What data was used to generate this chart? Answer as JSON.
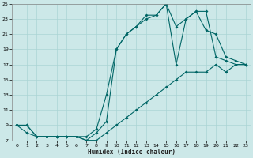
{
  "xlabel": "Humidex (Indice chaleur)",
  "bg_color": "#cce8e8",
  "grid_color": "#aad4d4",
  "line_color": "#006666",
  "xlim": [
    -0.5,
    23.5
  ],
  "ylim": [
    7,
    25
  ],
  "xticks": [
    0,
    1,
    2,
    3,
    4,
    5,
    6,
    7,
    8,
    9,
    10,
    11,
    12,
    13,
    14,
    15,
    16,
    17,
    18,
    19,
    20,
    21,
    22,
    23
  ],
  "yticks": [
    7,
    9,
    11,
    13,
    15,
    17,
    19,
    21,
    23,
    25
  ],
  "line1_x": [
    0,
    1,
    2,
    3,
    4,
    5,
    6,
    7,
    8,
    9,
    10,
    11,
    12,
    13,
    14,
    15,
    16,
    17,
    18,
    19,
    20,
    21,
    22,
    23
  ],
  "line1_y": [
    9,
    8,
    7.5,
    7.5,
    7.5,
    7.5,
    7.5,
    7,
    8,
    9.5,
    19,
    21,
    22,
    23.5,
    23.5,
    25,
    22,
    23,
    24,
    24,
    18,
    17.5,
    17,
    17
  ],
  "line2_x": [
    0,
    1,
    2,
    3,
    4,
    5,
    6,
    7,
    8,
    9,
    10,
    11,
    12,
    13,
    14,
    15,
    16,
    17,
    18,
    19,
    20,
    21,
    22,
    23
  ],
  "line2_y": [
    9,
    9,
    7.5,
    7.5,
    7.5,
    7.5,
    7.5,
    7.5,
    8.5,
    13,
    19,
    21,
    22,
    23,
    23.5,
    25,
    17,
    23,
    24,
    21.5,
    21,
    18,
    17.5,
    17
  ],
  "line3_x": [
    0,
    1,
    2,
    3,
    4,
    5,
    6,
    7,
    8,
    9,
    10,
    11,
    12,
    13,
    14,
    15,
    16,
    17,
    18,
    19,
    20,
    21,
    22,
    23
  ],
  "line3_y": [
    9,
    9,
    7.5,
    7.5,
    7.5,
    7.5,
    7.5,
    7,
    7,
    8,
    9,
    10,
    11,
    12,
    13,
    14,
    15,
    16,
    16,
    16,
    17,
    16,
    17,
    17
  ]
}
